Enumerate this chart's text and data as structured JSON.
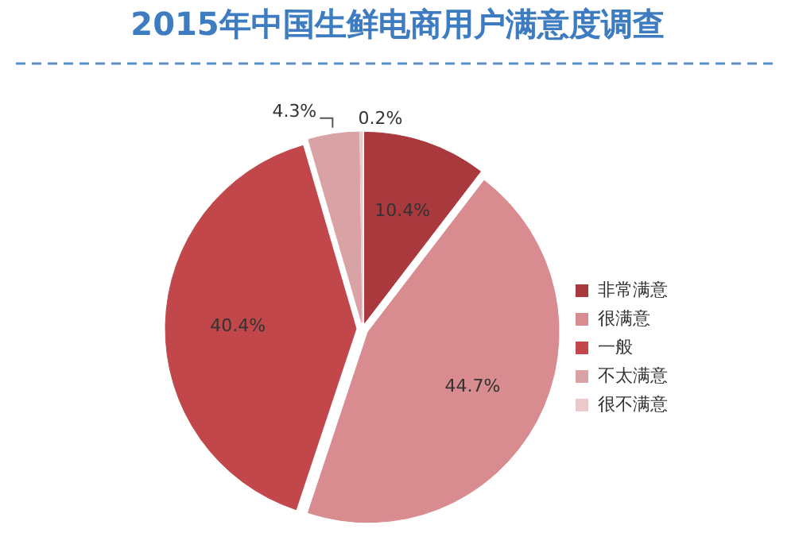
{
  "chart_data": {
    "type": "pie",
    "title": "2015年中国生鲜电商用户满意度调查",
    "categories": [
      "非常满意",
      "很满意",
      "一般",
      "不太满意",
      "很不满意"
    ],
    "values": [
      10.4,
      44.7,
      40.4,
      4.3,
      0.2
    ],
    "value_labels": [
      "10.4%",
      "44.7%",
      "40.4%",
      "4.3%",
      "0.2%"
    ],
    "colors": [
      "#a9393c",
      "#d88c90",
      "#c2474b",
      "#d9a3a6",
      "#ecc9cb"
    ],
    "legend": "right"
  }
}
